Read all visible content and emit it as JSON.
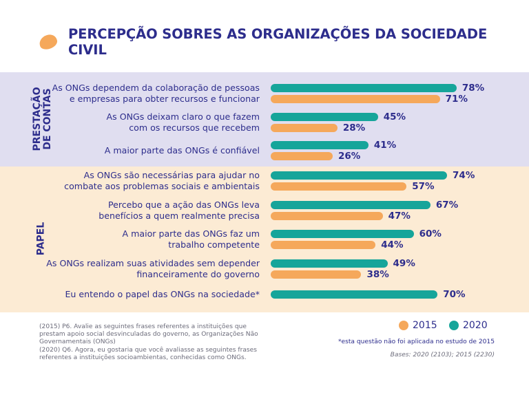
{
  "colors": {
    "title": "#2d2d8c",
    "s2015": "#f5a85b",
    "s2020": "#16a59a",
    "band_a": "#e0def0",
    "band_b": "#fcebd4"
  },
  "title": "PERCEPÇÃO SOBRES AS ORGANIZAÇÕES DA SOCIEDADE CIVIL",
  "groups": {
    "prestacao": [
      "PRESTAÇÃO",
      "DE CONTAS"
    ],
    "papel": "PAPEL"
  },
  "legend": {
    "s2015": "2015",
    "s2020": "2020"
  },
  "notes": [
    "(2015) P6. Avalie as seguintes frases referentes a instituições que",
    "prestam apoio social desvinculadas do governo, as Organizações Não",
    "Governamentais (ONGs)",
    "(2020) Q6. Agora, eu gostaria que você avaliasse as seguintes frases",
    "referentes a instituições socioambientas, conhecidas como ONGs."
  ],
  "footnote": "*esta questão não foi aplicada no estudo de 2015",
  "bases": "Bases: 2020 (2103); 2015 (2230)",
  "chart_data": {
    "type": "bar",
    "orientation": "horizontal",
    "grid": false,
    "xlim": [
      0,
      100
    ],
    "legend_position": "bottom-right",
    "categories": [
      [
        "As ONGs dependem da colaboração de pessoas",
        "e empresas para obter recursos e funcionar"
      ],
      [
        "As ONGs deixam claro o que fazem",
        "com os recursos que recebem"
      ],
      [
        "A maior parte das ONGs é confiável"
      ],
      [
        "As ONGs são necessárias para ajudar no",
        "combate aos problemas sociais e ambientais"
      ],
      [
        "Percebo que a ação das ONGs leva",
        "benefícios a quem realmente precisa"
      ],
      [
        "A maior parte das ONGs faz um",
        "trabalho competente"
      ],
      [
        "As ONGs realizam suas atividades sem depender",
        "financeiramente do governo"
      ],
      [
        "Eu entendo o papel das ONGs na sociedade*"
      ]
    ],
    "series": [
      {
        "name": "2020",
        "values": [
          78,
          45,
          41,
          74,
          67,
          60,
          49,
          70
        ],
        "labels": [
          "78%",
          "45%",
          "41%",
          "74%",
          "67%",
          "60%",
          "49%",
          "70%"
        ]
      },
      {
        "name": "2015",
        "values": [
          71,
          28,
          26,
          57,
          47,
          44,
          38,
          null
        ],
        "labels": [
          "71%",
          "28%",
          "26%",
          "57%",
          "47%",
          "44%",
          "38%",
          null
        ]
      }
    ]
  }
}
